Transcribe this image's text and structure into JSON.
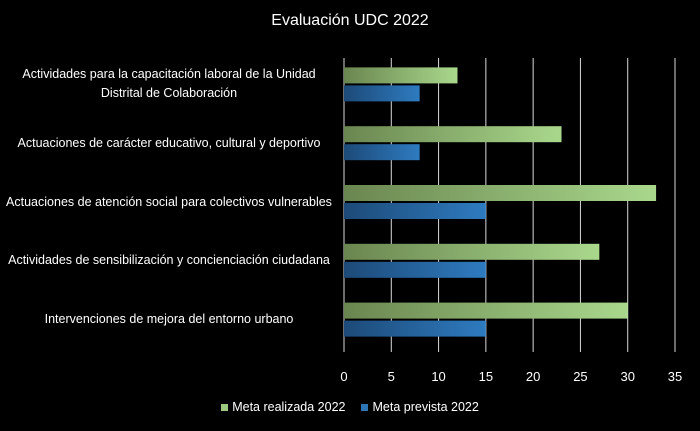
{
  "chart_data": {
    "type": "bar",
    "orientation": "horizontal",
    "title": "Evaluación UDC 2022",
    "categories": [
      "Actividades para la capacitación laboral de la Unidad Distrital de Colaboración",
      "Actuaciones de carácter educativo, cultural y deportivo",
      "Actuaciones de atención social para colectivos vulnerables",
      "Actividades de sensibilización y concienciación ciudadana",
      "Intervenciones  de mejora del entorno urbano"
    ],
    "series": [
      {
        "name": "Meta realizada 2022",
        "values": [
          12,
          23,
          33,
          27,
          30
        ],
        "color": "#9bc97f"
      },
      {
        "name": "Meta prevista 2022",
        "values": [
          8,
          8,
          15,
          15,
          15
        ],
        "color": "#2e75b6"
      }
    ],
    "xlim": [
      0,
      35
    ],
    "ticks": [
      "0",
      "5",
      "10",
      "15",
      "20",
      "25",
      "30",
      "35"
    ],
    "grid": true,
    "legend": "bottom"
  }
}
